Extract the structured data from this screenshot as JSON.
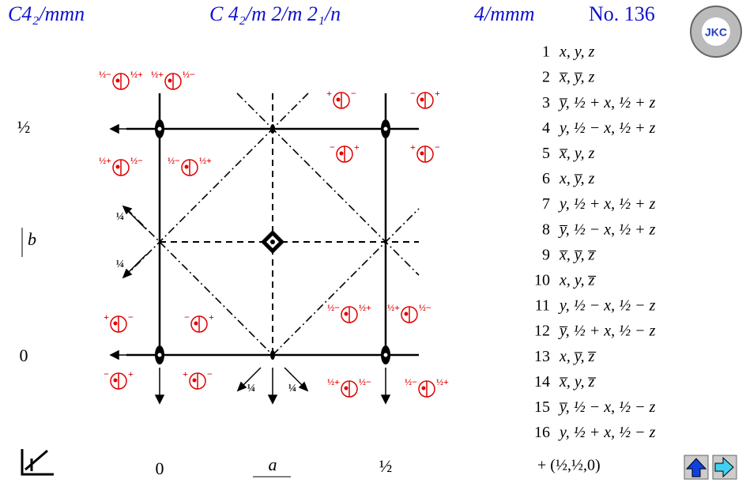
{
  "header": {
    "short_symbol": "C4₂/mmn",
    "full_symbol": "C 4₂/m 2/m 2₁/n",
    "point_group": "4/mmm",
    "number": "No. 136"
  },
  "logo": "JKC",
  "axis_labels": {
    "y_half": "½",
    "y_axis": "b",
    "y_zero": "0",
    "x_zero": "0",
    "x_axis": "a",
    "x_half": "½"
  },
  "quarter_labels": [
    "¼",
    "¼",
    "¼",
    "¼"
  ],
  "symbols": [
    {
      "left": "½−",
      "right": "½+"
    },
    {
      "left": "½+",
      "right": "½−"
    },
    {
      "left": "+",
      "right": "−"
    },
    {
      "left": "−",
      "right": "+"
    },
    {
      "left": "½+",
      "right": "½−"
    },
    {
      "left": "½−",
      "right": "½+"
    },
    {
      "left": "−",
      "right": "+"
    },
    {
      "left": "+",
      "right": "−"
    },
    {
      "left": "+",
      "right": "−"
    },
    {
      "left": "−",
      "right": "+"
    },
    {
      "left": "½−",
      "right": "½+"
    },
    {
      "left": "½+",
      "right": "½−"
    },
    {
      "left": "−",
      "right": "+"
    },
    {
      "left": "+",
      "right": "−"
    },
    {
      "left": "½+",
      "right": "½−"
    },
    {
      "left": "½−",
      "right": "½+"
    }
  ],
  "positions": [
    {
      "n": "1",
      "coords": "x, y, z"
    },
    {
      "n": "2",
      "coords": "x̅, y̅, z"
    },
    {
      "n": "3",
      "coords": "y̅, ½ + x, ½ + z"
    },
    {
      "n": "4",
      "coords": "y, ½ − x, ½ + z"
    },
    {
      "n": "5",
      "coords": "x̅, y, z"
    },
    {
      "n": "6",
      "coords": "x, y̅, z"
    },
    {
      "n": "7",
      "coords": "y, ½ + x, ½ + z"
    },
    {
      "n": "8",
      "coords": "y̅, ½ − x, ½ + z"
    },
    {
      "n": "9",
      "coords": "x̅, y̅, z̅"
    },
    {
      "n": "10",
      "coords": "x, y, z̅"
    },
    {
      "n": "11",
      "coords": "y, ½ − x, ½ − z"
    },
    {
      "n": "12",
      "coords": "y̅, ½ + x, ½ − z"
    },
    {
      "n": "13",
      "coords": "x, y̅, z̅"
    },
    {
      "n": "14",
      "coords": "x̅, y, z̅"
    },
    {
      "n": "15",
      "coords": "y̅, ½ − x, ½ − z"
    },
    {
      "n": "16",
      "coords": "y, ½ + x, ½ − z"
    }
  ],
  "centering": "+ (½,½,0)"
}
